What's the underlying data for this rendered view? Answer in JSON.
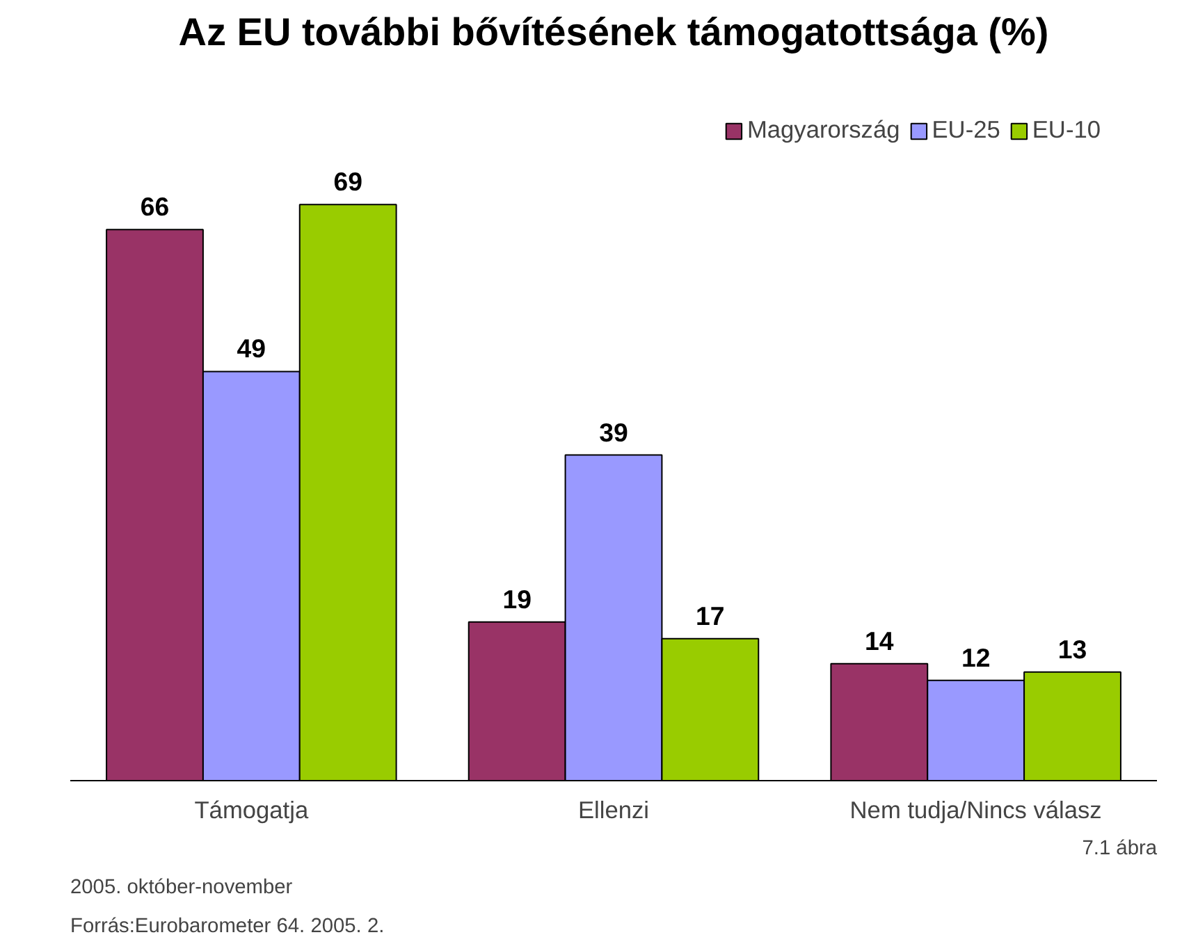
{
  "chart_data": {
    "type": "bar",
    "title": "Az EU további bővítésének támogatottsága (%)",
    "categories": [
      "Támogatja",
      "Ellenzi",
      "Nem tudja/Nincs válasz"
    ],
    "series": [
      {
        "name": "Magyarország",
        "color": "#993366",
        "values": [
          66,
          19,
          14
        ]
      },
      {
        "name": "EU-25",
        "color": "#9999ff",
        "values": [
          49,
          39,
          12
        ]
      },
      {
        "name": "EU-10",
        "color": "#99cc00",
        "values": [
          69,
          17,
          13
        ]
      }
    ],
    "data_labels": true,
    "legend": "top right",
    "grid": false,
    "tick_labels": "x",
    "annotations": [
      "Forrás:Eurobarometer 64. 2005. 2.",
      "2005. október-november",
      "7.1 ábra"
    ]
  }
}
